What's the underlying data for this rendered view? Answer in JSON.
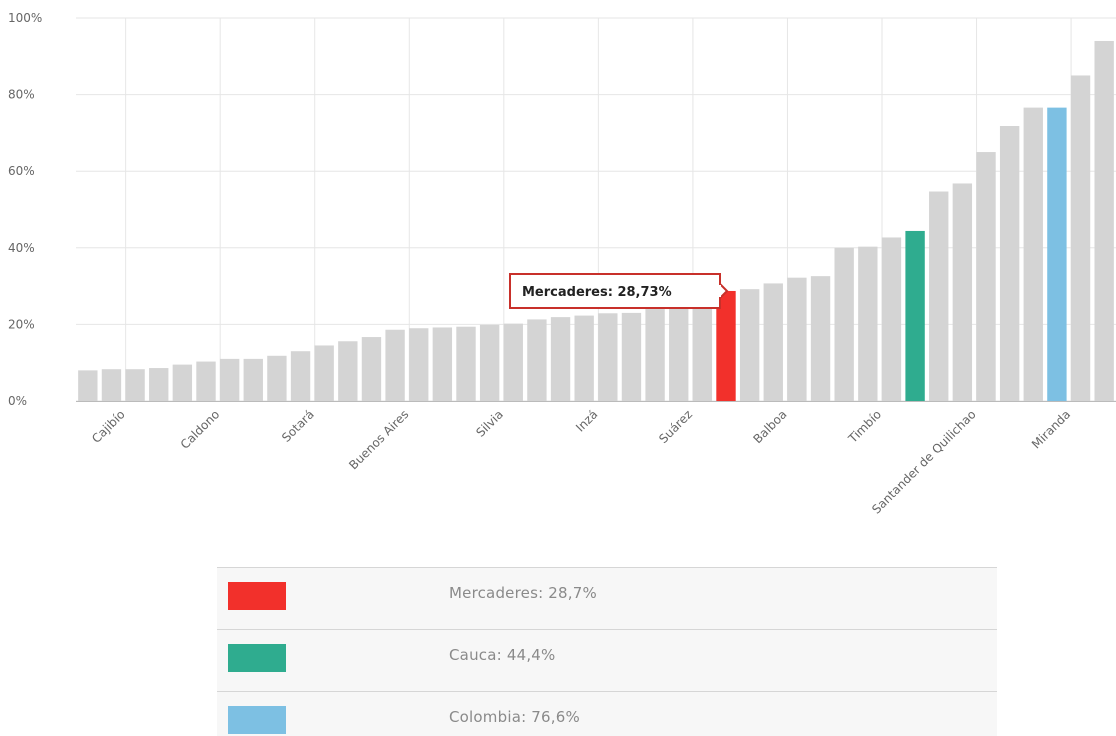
{
  "chart_data": {
    "type": "bar",
    "ylim": [
      0,
      100
    ],
    "yticks": [
      "0%",
      "20%",
      "40%",
      "60%",
      "80%",
      "100%"
    ],
    "values": [
      8.0,
      8.3,
      8.3,
      8.6,
      9.5,
      10.3,
      11.0,
      11.0,
      11.8,
      13.0,
      14.5,
      15.6,
      16.7,
      18.6,
      19.0,
      19.2,
      19.4,
      19.9,
      20.2,
      21.3,
      21.9,
      22.3,
      22.9,
      23.0,
      24.0,
      24.5,
      25.0,
      28.73,
      29.2,
      30.7,
      32.2,
      32.6,
      40.0,
      40.3,
      42.7,
      44.4,
      54.7,
      56.8,
      65.0,
      71.8,
      76.6,
      76.6,
      85.0,
      94.0
    ],
    "highlights": [
      {
        "index": 27,
        "name": "Mercaderes",
        "color": "#f2302b"
      },
      {
        "index": 35,
        "name": "Cauca",
        "color": "#2fac8f"
      },
      {
        "index": 41,
        "name": "Colombia",
        "color": "#7dc0e3"
      }
    ],
    "x_tick_labels": [
      {
        "index": 1,
        "label": "Cajibío"
      },
      {
        "index": 5,
        "label": "Caldono"
      },
      {
        "index": 9,
        "label": "Sotará"
      },
      {
        "index": 13,
        "label": "Buenos Aires"
      },
      {
        "index": 17,
        "label": "Silvia"
      },
      {
        "index": 21,
        "label": "Inzá"
      },
      {
        "index": 25,
        "label": "Suárez"
      },
      {
        "index": 29,
        "label": "Balboa"
      },
      {
        "index": 33,
        "label": "Timbío"
      },
      {
        "index": 37,
        "label": "Santander de Quilichao"
      },
      {
        "index": 41,
        "label": "Miranda"
      }
    ],
    "tooltip": {
      "index": 27,
      "text": "Mercaderes: 28,73%"
    },
    "grid": true
  },
  "colors": {
    "bar_default": "#d4d4d4",
    "grid": "#e6e6e6",
    "axis": "#bbbbbb",
    "tooltip_border": "#c8302a"
  },
  "legend": [
    {
      "label": "Mercaderes:  28,7%",
      "color": "#f2302b"
    },
    {
      "label": "Cauca:  44,4%",
      "color": "#2fac8f"
    },
    {
      "label": "Colombia:  76,6%",
      "color": "#7dc0e3"
    }
  ]
}
